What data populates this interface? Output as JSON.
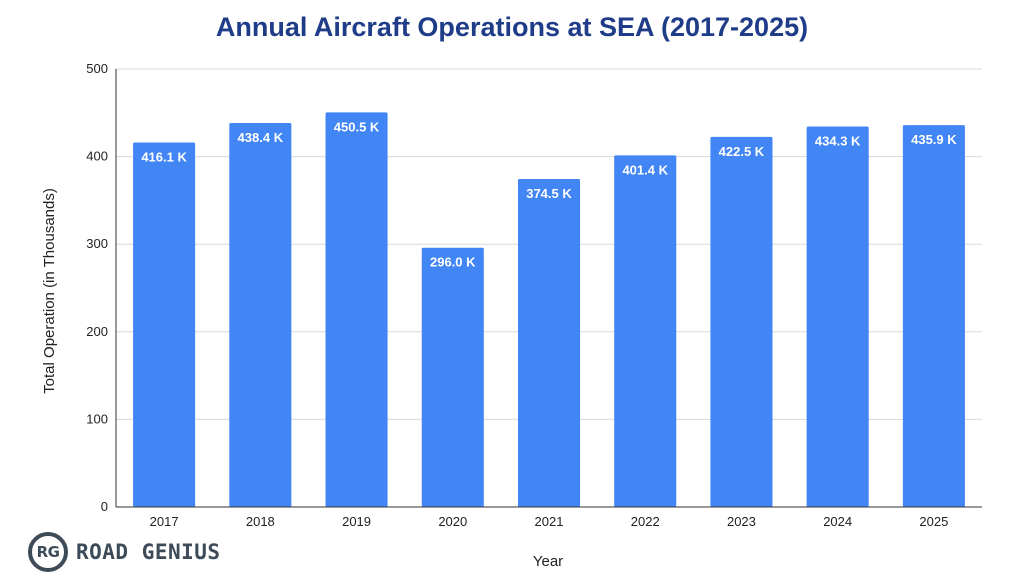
{
  "chart_data": {
    "type": "bar",
    "title": "Annual Aircraft Operations at SEA (2017-2025)",
    "xlabel": "Year",
    "ylabel": "Total Operation (in Thousands)",
    "categories": [
      "2017",
      "2018",
      "2019",
      "2020",
      "2021",
      "2022",
      "2023",
      "2024",
      "2025"
    ],
    "values": [
      416.1,
      438.4,
      450.5,
      296.0,
      374.5,
      401.4,
      422.5,
      434.3,
      435.9
    ],
    "data_labels": [
      "416.1 K",
      "438.4 K",
      "450.5 K",
      "296.0 K",
      "374.5 K",
      "401.4 K",
      "422.5 K",
      "434.3 K",
      "435.9 K"
    ],
    "ylim": [
      0,
      500
    ],
    "yticks": [
      0,
      100,
      200,
      300,
      400,
      500
    ],
    "grid": true,
    "legend": "none"
  },
  "colors": {
    "bar": "#4285f4",
    "title": "#1f3c88",
    "grid": "#d9d9d9",
    "axis": "#333333"
  },
  "logo": {
    "badge": "RG",
    "text": "ROAD GENIUS"
  }
}
